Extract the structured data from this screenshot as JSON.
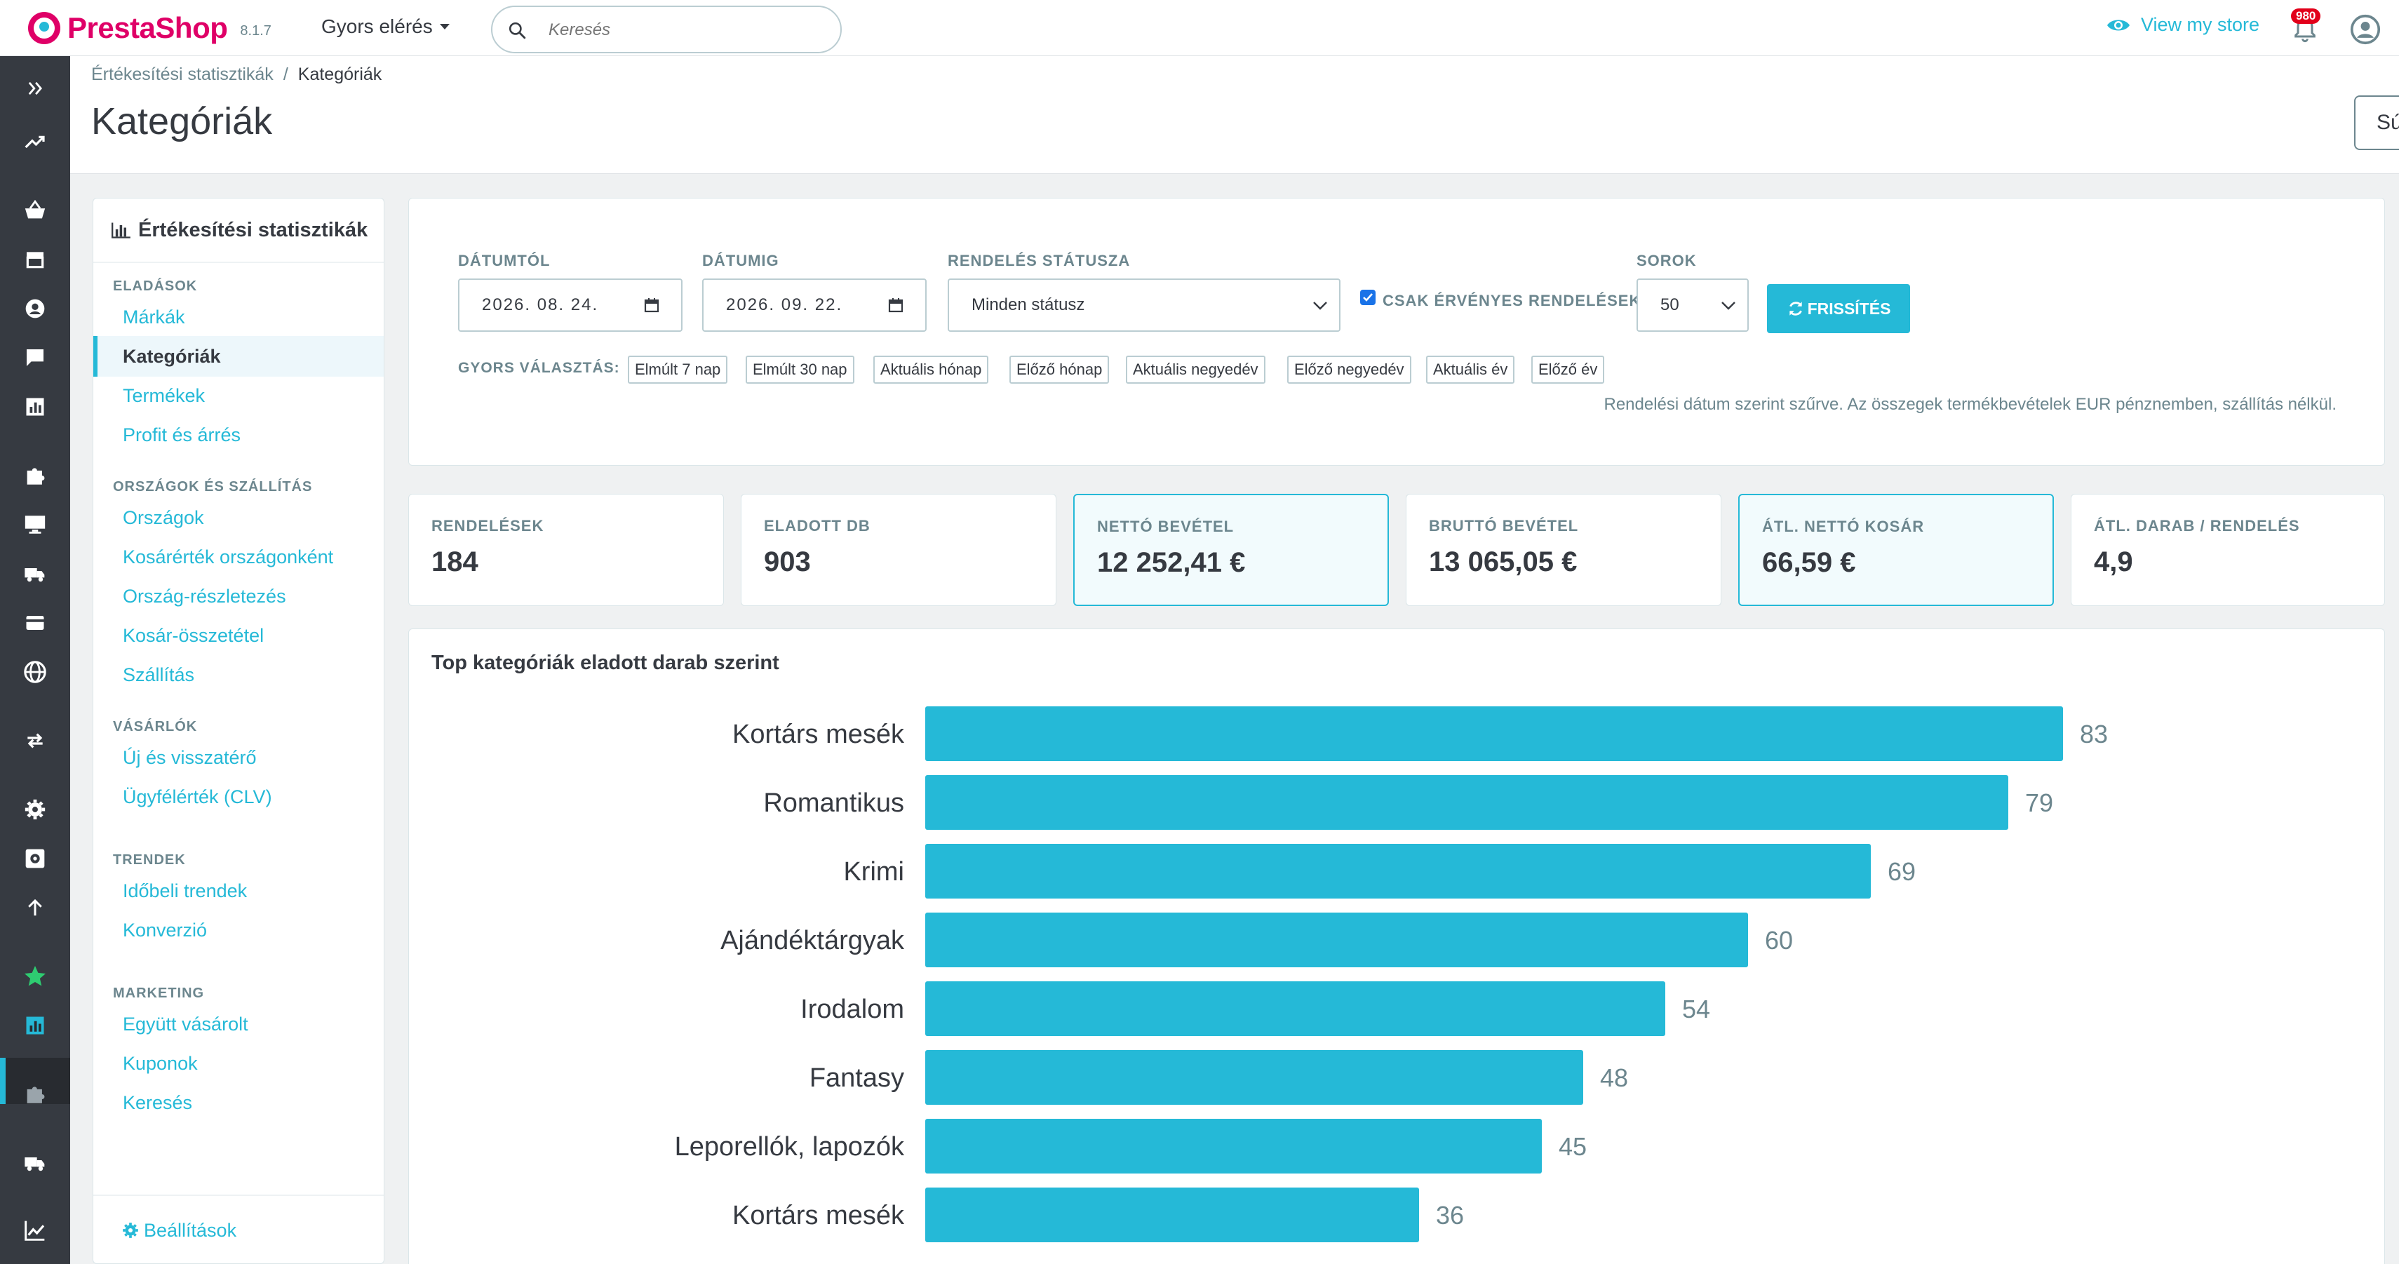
{
  "header": {
    "brand": "PrestaShop",
    "version": "8.1.7",
    "quick_access": "Gyors elérés",
    "search_placeholder": "Keresés",
    "view_store": "View my store",
    "notifications_count": "980"
  },
  "breadcrumb": {
    "parent": "Értékesítési statisztikák",
    "separator": "/",
    "current": "Kategóriák"
  },
  "page_title": "Kategóriák",
  "help_button": "Súgó",
  "sidebar": {
    "title": "Értékesítési statisztikák",
    "sections": [
      {
        "title": "ELADÁSOK",
        "items": [
          "Márkák",
          "Kategóriák",
          "Termékek",
          "Profit és árrés"
        ]
      },
      {
        "title": "ORSZÁGOK ÉS SZÁLLÍTÁS",
        "items": [
          "Országok",
          "Kosárérték országonként",
          "Ország-részletezés",
          "Kosár-összetétel",
          "Szállítás"
        ]
      },
      {
        "title": "VÁSÁRLÓK",
        "items": [
          "Új és visszatérő",
          "Ügyfélérték (CLV)"
        ]
      },
      {
        "title": "TRENDEK",
        "items": [
          "Időbeli trendek",
          "Konverzió"
        ]
      },
      {
        "title": "MARKETING",
        "items": [
          "Együtt vásárolt",
          "Kuponok",
          "Keresés"
        ]
      }
    ],
    "active_item": "Kategóriák",
    "settings": "Beállítások"
  },
  "filters": {
    "date_from_label": "DÁTUMTÓL",
    "date_from": "2026. 08. 24.",
    "date_to_label": "DÁTUMIG",
    "date_to": "2026. 09. 22.",
    "status_label": "RENDELÉS STÁTUSZA",
    "status_value": "Minden státusz",
    "valid_only_label": "CSAK ÉRVÉNYES RENDELÉSEK",
    "valid_only_checked": true,
    "rows_label": "SOROK",
    "rows_value": "50",
    "refresh_button": "FRISSÍTÉS",
    "quick_pick_label": "GYORS VÁLASZTÁS:",
    "quick_picks": [
      "Elmúlt 7 nap",
      "Elmúlt 30 nap",
      "Aktuális hónap",
      "Előző hónap",
      "Aktuális negyedév",
      "Előző negyedév",
      "Aktuális év",
      "Előző év"
    ],
    "note": "Rendelési dátum szerint szűrve. Az összegek termékbevételek EUR pénznemben, szállítás nélkül."
  },
  "kpis": [
    {
      "label": "RENDELÉSEK",
      "value": "184",
      "highlighted": false
    },
    {
      "label": "ELADOTT DB",
      "value": "903",
      "highlighted": false
    },
    {
      "label": "NETTÓ BEVÉTEL",
      "value": "12 252,41 €",
      "highlighted": true
    },
    {
      "label": "BRUTTÓ BEVÉTEL",
      "value": "13 065,05 €",
      "highlighted": false
    },
    {
      "label": "ÁTL. NETTÓ KOSÁR",
      "value": "66,59 €",
      "highlighted": true
    },
    {
      "label": "ÁTL. DARAB / RENDELÉS",
      "value": "4,9",
      "highlighted": false
    }
  ],
  "colors": {
    "accent": "#25b9d7",
    "brand": "#df0067",
    "nav_bg": "#363a41"
  },
  "chart_data": {
    "type": "bar",
    "orientation": "horizontal",
    "title": "Top kategóriák eladott darab szerint",
    "categories": [
      "Kortárs mesék",
      "Romantikus",
      "Krimi",
      "Ajándéktárgyak",
      "Irodalom",
      "Fantasy",
      "Leporellók, lapozók",
      "Kortárs mesék"
    ],
    "values": [
      83,
      79,
      69,
      60,
      54,
      48,
      45,
      36
    ],
    "xlim": [
      0,
      83
    ],
    "grid": false,
    "legend": "none",
    "data_labels": true
  }
}
